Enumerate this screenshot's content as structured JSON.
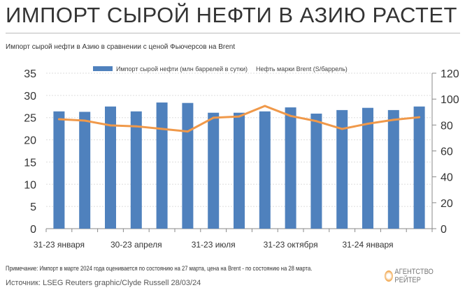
{
  "header": {
    "title": "ИМПОРТ СЫРОЙ НЕФТИ В АЗИЮ РАСТЕТ",
    "subtitle": "Импорт сырой нефти в Азию в сравнении с ценой Фьючерсов на Brent"
  },
  "footer": {
    "note": "Примечание: Импорт в марте 2024 года оценивается по состоянию на 27 марта, цена на Brent - по состоянию на 28 марта.",
    "source": "Источник: LSEG Reuters graphic/Clyde Russell 28/03/24",
    "logo": "АГЕНТСТВО РЕЙТЕР"
  },
  "chart_data": {
    "type": "bar+line",
    "categories": [
      "2023-01",
      "2023-02",
      "2023-03",
      "2023-04",
      "2023-05",
      "2023-06",
      "2023-07",
      "2023-08",
      "2023-09",
      "2023-10",
      "2023-11",
      "2023-12",
      "2024-01",
      "2024-02",
      "2024-03"
    ],
    "xtick_labels": [
      {
        "index": 0,
        "label": "31-23 января"
      },
      {
        "index": 3,
        "label": "30-23 апреля"
      },
      {
        "index": 6,
        "label": "31-23 июля"
      },
      {
        "index": 9,
        "label": "31-23 октября"
      },
      {
        "index": 12,
        "label": "31-24 января"
      }
    ],
    "series": [
      {
        "name": "Импорт сырой нефти (млн баррелей в сутки)",
        "type": "bar",
        "axis": "left",
        "color": "#4f81bd",
        "values": [
          26.4,
          26.3,
          27.5,
          26.4,
          28.4,
          28.3,
          26.1,
          26.1,
          26.4,
          27.3,
          25.9,
          26.7,
          27.2,
          26.7,
          27.5
        ]
      },
      {
        "name": "Нефть марки Brent (S/баррель)",
        "type": "line",
        "axis": "right",
        "color": "#f0994a",
        "values": [
          84.5,
          83.4,
          79.7,
          79,
          77,
          75,
          85.6,
          86.6,
          94.7,
          87,
          83,
          77,
          81,
          84,
          86
        ]
      }
    ],
    "yleft": {
      "lim": [
        0,
        35
      ],
      "ticks": [
        "0",
        "5",
        "10",
        "15",
        "20",
        "25",
        "30",
        "35"
      ]
    },
    "yright": {
      "lim": [
        0,
        120
      ],
      "ticks": [
        "0",
        "20",
        "40",
        "60",
        "80",
        "100",
        "120"
      ]
    },
    "grid": true,
    "legend": "top"
  }
}
